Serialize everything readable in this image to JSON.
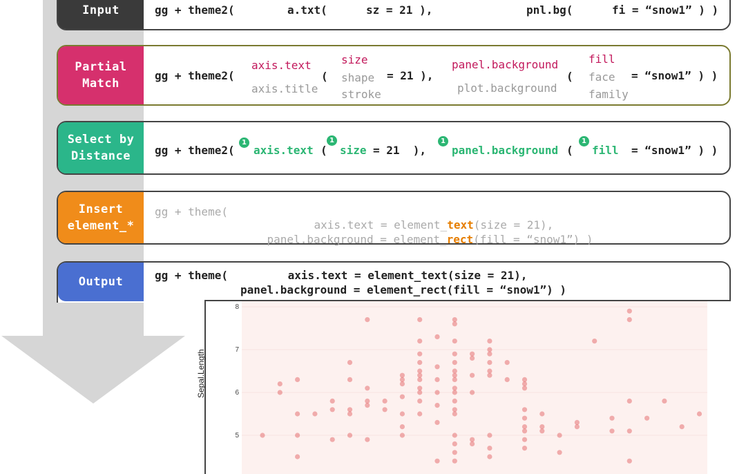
{
  "steps": [
    {
      "label": "Input",
      "color": "#3a3a3a"
    },
    {
      "label": "Partial\nMatch",
      "color": "#d6306d"
    },
    {
      "label": "Select by\nDistance",
      "color": "#2bb68a"
    },
    {
      "label": "Insert\nelement_*",
      "color": "#f08c1a"
    },
    {
      "label": "Output",
      "color": "#4a6fd1"
    }
  ],
  "input_code": {
    "gg": "gg + theme2(",
    "arg1": "a.txt(",
    "arg1b": "sz = 21 ),",
    "arg2": "pnl.bg(",
    "arg2b": "fi = “snow1” ) )"
  },
  "partial": {
    "gg": "gg + theme2(",
    "a1": "axis.text",
    "a2": "axis.title",
    "p1": "(",
    "s1": "size",
    "s2": "shape",
    "s3": "stroke",
    "eq": "= 21 ),",
    "b1": "panel.background",
    "b2": "plot.background",
    "p2": "(",
    "f1": "fill",
    "f2": "face",
    "f3": "family",
    "eq2": "= “snow1” ) )"
  },
  "select": {
    "gg": "gg + theme2(",
    "badge": "1",
    "a": "axis.text",
    "p1": "(",
    "s": "size",
    "eq": "= 21  ),",
    "b": "panel.background",
    "p2": "(",
    "f": "fill",
    "eq2": "= “snow1” ) )"
  },
  "insert": {
    "line1a": "gg + theme(",
    "line1b": "axis.text = element_",
    "line1c": "text",
    "line1d": "(size = 21),",
    "line2a": "panel.background = element_",
    "line2b": "rect",
    "line2c": "(fill = “snow1”) )"
  },
  "output": {
    "line1": "gg + theme(         axis.text = element_text(size = 21),",
    "line2": "panel.background = element_rect(fill = “snow1”) )"
  },
  "chart_data": {
    "type": "scatter",
    "ylabel": "Sepal.Length",
    "xlabel": "",
    "ylim": [
      4.5,
      8.1
    ],
    "yticks": [
      "8",
      "7",
      "6",
      "5"
    ],
    "background": "#fdf1ef",
    "point_color": "#e15759",
    "points": [
      [
        0,
        5.0
      ],
      [
        1,
        6.2
      ],
      [
        1,
        6.0
      ],
      [
        2,
        6.3
      ],
      [
        2,
        5.5
      ],
      [
        2,
        5.0
      ],
      [
        2,
        4.5
      ],
      [
        3,
        5.5
      ],
      [
        4,
        4.9
      ],
      [
        4,
        5.6
      ],
      [
        4,
        5.8
      ],
      [
        5,
        6.7
      ],
      [
        5,
        6.3
      ],
      [
        5,
        5.6
      ],
      [
        5,
        5.5
      ],
      [
        5,
        5.0
      ],
      [
        6,
        7.7
      ],
      [
        6,
        5.7
      ],
      [
        6,
        5.8
      ],
      [
        6,
        6.1
      ],
      [
        6,
        4.9
      ],
      [
        7,
        5.8
      ],
      [
        7,
        5.6
      ],
      [
        8,
        6.4
      ],
      [
        8,
        6.3
      ],
      [
        8,
        6.2
      ],
      [
        8,
        5.9
      ],
      [
        8,
        5.5
      ],
      [
        8,
        5.2
      ],
      [
        8,
        5.0
      ],
      [
        9,
        7.7
      ],
      [
        9,
        7.2
      ],
      [
        9,
        6.9
      ],
      [
        9,
        6.7
      ],
      [
        9,
        6.5
      ],
      [
        9,
        6.4
      ],
      [
        9,
        6.3
      ],
      [
        9,
        6.1
      ],
      [
        9,
        6.0
      ],
      [
        9,
        5.8
      ],
      [
        9,
        5.5
      ],
      [
        10,
        7.3
      ],
      [
        10,
        6.6
      ],
      [
        10,
        6.3
      ],
      [
        10,
        6.0
      ],
      [
        10,
        5.7
      ],
      [
        10,
        5.3
      ],
      [
        10,
        4.4
      ],
      [
        11,
        7.7
      ],
      [
        11,
        7.6
      ],
      [
        11,
        7.2
      ],
      [
        11,
        6.9
      ],
      [
        11,
        6.7
      ],
      [
        11,
        6.5
      ],
      [
        11,
        6.4
      ],
      [
        11,
        6.3
      ],
      [
        11,
        6.1
      ],
      [
        11,
        6.0
      ],
      [
        11,
        5.8
      ],
      [
        11,
        5.6
      ],
      [
        11,
        5.5
      ],
      [
        11,
        5.0
      ],
      [
        11,
        4.8
      ],
      [
        11,
        4.6
      ],
      [
        11,
        4.4
      ],
      [
        12,
        6.9
      ],
      [
        12,
        6.8
      ],
      [
        12,
        6.4
      ],
      [
        12,
        6.0
      ],
      [
        12,
        4.9
      ],
      [
        12,
        4.8
      ],
      [
        13,
        7.2
      ],
      [
        13,
        7.0
      ],
      [
        13,
        6.9
      ],
      [
        13,
        6.7
      ],
      [
        13,
        6.5
      ],
      [
        13,
        6.4
      ],
      [
        13,
        5.0
      ],
      [
        13,
        4.7
      ],
      [
        13,
        4.5
      ],
      [
        14,
        6.7
      ],
      [
        14,
        6.3
      ],
      [
        15,
        6.3
      ],
      [
        15,
        6.2
      ],
      [
        15,
        6.1
      ],
      [
        15,
        5.6
      ],
      [
        15,
        5.4
      ],
      [
        15,
        5.2
      ],
      [
        15,
        5.1
      ],
      [
        15,
        4.9
      ],
      [
        15,
        4.7
      ],
      [
        16,
        5.5
      ],
      [
        16,
        5.2
      ],
      [
        16,
        5.1
      ],
      [
        17,
        5.0
      ],
      [
        17,
        4.6
      ],
      [
        18,
        5.3
      ],
      [
        18,
        5.2
      ],
      [
        19,
        7.2
      ],
      [
        20,
        5.4
      ],
      [
        20,
        5.1
      ],
      [
        21,
        7.9
      ],
      [
        21,
        7.7
      ],
      [
        21,
        5.8
      ],
      [
        21,
        5.1
      ],
      [
        21,
        4.4
      ],
      [
        22,
        5.4
      ],
      [
        23,
        5.8
      ],
      [
        24,
        5.2
      ],
      [
        25,
        5.5
      ],
      [
        27,
        5.7
      ]
    ]
  }
}
